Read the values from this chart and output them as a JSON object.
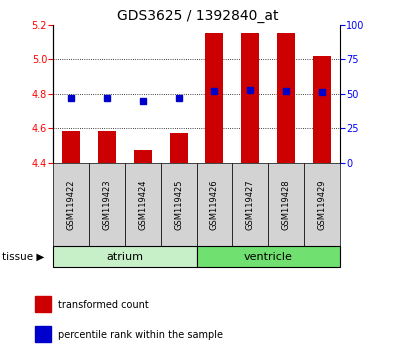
{
  "title": "GDS3625 / 1392840_at",
  "samples": [
    "GSM119422",
    "GSM119423",
    "GSM119424",
    "GSM119425",
    "GSM119426",
    "GSM119427",
    "GSM119428",
    "GSM119429"
  ],
  "transformed_count": [
    4.585,
    4.585,
    4.475,
    4.575,
    5.15,
    5.15,
    5.15,
    5.02
  ],
  "percentile_rank": [
    47,
    47,
    45,
    47,
    52,
    53,
    52,
    51
  ],
  "bar_base": 4.4,
  "ylim_left": [
    4.4,
    5.2
  ],
  "ylim_right": [
    0,
    100
  ],
  "yticks_left": [
    4.4,
    4.6,
    4.8,
    5.0,
    5.2
  ],
  "yticks_right": [
    0,
    25,
    50,
    75,
    100
  ],
  "grid_values": [
    4.6,
    4.8,
    5.0
  ],
  "tissues": [
    {
      "label": "atrium",
      "start": 0,
      "end": 4,
      "color": "#c8f0c8"
    },
    {
      "label": "ventricle",
      "start": 4,
      "end": 8,
      "color": "#70e070"
    }
  ],
  "bar_color": "#cc0000",
  "marker_color": "#0000cc",
  "legend_items": [
    {
      "label": "transformed count",
      "color": "#cc0000",
      "marker": "s"
    },
    {
      "label": "percentile rank within the sample",
      "color": "#0000cc",
      "marker": "s"
    }
  ],
  "sample_bg_color": "#d3d3d3",
  "title_fontsize": 10,
  "tick_fontsize": 7,
  "label_fontsize": 7,
  "sample_fontsize": 6,
  "tissue_fontsize": 8
}
